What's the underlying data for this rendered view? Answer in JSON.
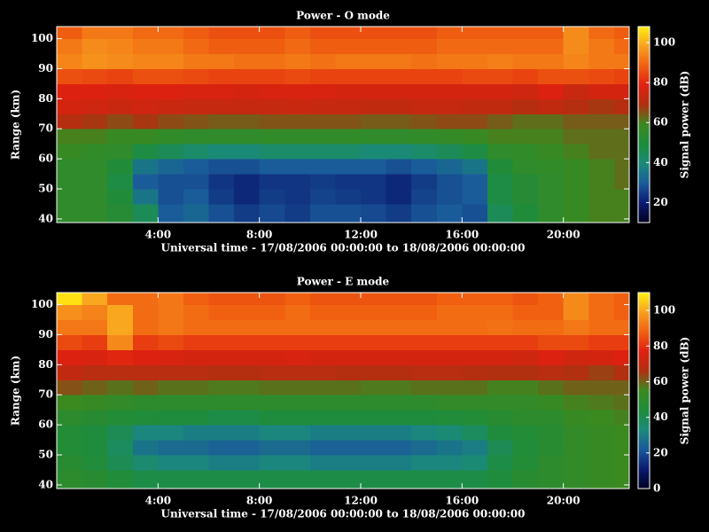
{
  "chart_data": [
    {
      "type": "heatmap",
      "title": "Power - O mode",
      "xlabel": "Universal time - 17/08/2006 00:00:00 to 18/08/2006 00:00:00",
      "ylabel": "Range (km)",
      "colorbar_label": "Signal power (dB)",
      "xbins": [
        0,
        1,
        2,
        3,
        4,
        5,
        6,
        7,
        8,
        9,
        10,
        11,
        12,
        13,
        14,
        15,
        16,
        17,
        18,
        19,
        20,
        21,
        22,
        22.6
      ],
      "ybins": [
        38.8,
        45,
        50,
        55,
        60,
        65,
        70,
        75,
        80,
        85,
        90,
        95,
        100,
        104
      ],
      "z": [
        [
          55,
          55,
          52,
          45,
          30,
          32,
          28,
          25,
          27,
          25,
          28,
          28,
          27,
          25,
          28,
          30,
          28,
          45,
          50,
          55,
          58,
          60,
          60
        ],
        [
          55,
          55,
          50,
          35,
          28,
          30,
          25,
          22,
          25,
          24,
          26,
          25,
          24,
          22,
          26,
          28,
          30,
          48,
          52,
          55,
          58,
          60,
          60
        ],
        [
          55,
          55,
          48,
          30,
          28,
          28,
          24,
          22,
          24,
          24,
          25,
          24,
          24,
          22,
          25,
          28,
          30,
          48,
          52,
          55,
          58,
          60,
          62
        ],
        [
          55,
          55,
          50,
          35,
          32,
          30,
          28,
          28,
          30,
          30,
          30,
          30,
          30,
          28,
          30,
          32,
          35,
          50,
          55,
          56,
          58,
          60,
          62
        ],
        [
          58,
          56,
          55,
          48,
          45,
          42,
          40,
          40,
          42,
          42,
          42,
          42,
          40,
          40,
          42,
          45,
          48,
          55,
          56,
          58,
          60,
          62,
          62
        ],
        [
          60,
          60,
          58,
          58,
          56,
          55,
          55,
          55,
          56,
          56,
          56,
          56,
          55,
          55,
          56,
          57,
          58,
          60,
          60,
          60,
          62,
          62,
          62
        ],
        [
          70,
          68,
          66,
          68,
          66,
          65,
          64,
          64,
          65,
          65,
          65,
          65,
          64,
          64,
          65,
          66,
          66,
          64,
          62,
          62,
          64,
          64,
          64
        ],
        [
          76,
          75,
          74,
          75,
          74,
          73,
          73,
          73,
          73,
          74,
          73,
          73,
          72,
          72,
          73,
          73,
          72,
          72,
          70,
          72,
          70,
          68,
          70
        ],
        [
          78,
          78,
          77,
          78,
          78,
          77,
          77,
          76,
          77,
          77,
          77,
          76,
          76,
          76,
          76,
          76,
          76,
          76,
          75,
          78,
          74,
          76,
          76
        ],
        [
          86,
          85,
          84,
          86,
          86,
          85,
          84,
          84,
          84,
          85,
          84,
          84,
          84,
          84,
          84,
          84,
          85,
          85,
          84,
          86,
          86,
          85,
          84
        ],
        [
          94,
          96,
          95,
          94,
          94,
          92,
          92,
          91,
          91,
          92,
          91,
          92,
          92,
          92,
          91,
          92,
          92,
          93,
          92,
          92,
          94,
          92,
          92
        ],
        [
          92,
          95,
          94,
          92,
          92,
          90,
          88,
          88,
          88,
          90,
          88,
          88,
          88,
          88,
          88,
          90,
          90,
          90,
          90,
          90,
          95,
          92,
          90
        ],
        [
          88,
          92,
          92,
          90,
          90,
          88,
          86,
          86,
          86,
          88,
          86,
          86,
          86,
          86,
          86,
          88,
          88,
          88,
          88,
          88,
          95,
          90,
          88
        ]
      ],
      "xlim": [
        0,
        22.6
      ],
      "ylim": [
        38.8,
        104
      ],
      "xticks": [
        {
          "value": 4,
          "label": "4:00"
        },
        {
          "value": 8,
          "label": "8:00"
        },
        {
          "value": 12,
          "label": "12:00"
        },
        {
          "value": 16,
          "label": "16:00"
        },
        {
          "value": 20,
          "label": "20:00"
        }
      ],
      "yticks": [
        40,
        50,
        60,
        70,
        80,
        90,
        100
      ],
      "zlim": [
        10,
        108
      ],
      "zticks": [
        20,
        40,
        60,
        80,
        100
      ],
      "colors": [
        "#000020",
        "#0a1a70",
        "#1a5a9a",
        "#1a8a7a",
        "#1e8c3c",
        "#3a8a20",
        "#b03010",
        "#e02010",
        "#f06010",
        "#f8a020",
        "#ffee10"
      ]
    },
    {
      "type": "heatmap",
      "title": "Power - E mode",
      "xlabel": "Universal time - 17/08/2006 00:00:00 to 18/08/2006 00:00:00",
      "ylabel": "Range (km)",
      "colorbar_label": "Signal power (dB)",
      "xbins": [
        0,
        1,
        2,
        3,
        4,
        5,
        6,
        7,
        8,
        9,
        10,
        11,
        12,
        13,
        14,
        15,
        16,
        17,
        18,
        19,
        20,
        21,
        22,
        22.6
      ],
      "ybins": [
        38.8,
        45,
        50,
        55,
        60,
        65,
        70,
        75,
        80,
        85,
        90,
        95,
        100,
        104
      ],
      "z": [
        [
          50,
          48,
          45,
          42,
          42,
          42,
          42,
          42,
          42,
          42,
          42,
          42,
          42,
          42,
          42,
          42,
          42,
          44,
          48,
          50,
          52,
          54,
          55
        ],
        [
          48,
          45,
          40,
          35,
          32,
          32,
          30,
          30,
          32,
          32,
          30,
          30,
          30,
          30,
          32,
          32,
          34,
          42,
          46,
          50,
          52,
          54,
          55
        ],
        [
          46,
          44,
          38,
          28,
          26,
          26,
          24,
          24,
          26,
          26,
          24,
          24,
          24,
          24,
          26,
          28,
          30,
          40,
          45,
          48,
          52,
          54,
          55
        ],
        [
          46,
          44,
          40,
          32,
          32,
          30,
          30,
          30,
          32,
          32,
          30,
          30,
          30,
          30,
          32,
          34,
          38,
          44,
          46,
          48,
          52,
          54,
          55
        ],
        [
          50,
          48,
          46,
          45,
          44,
          44,
          42,
          42,
          44,
          44,
          44,
          44,
          44,
          44,
          44,
          45,
          46,
          48,
          50,
          50,
          54,
          55,
          56
        ],
        [
          55,
          54,
          52,
          50,
          50,
          50,
          50,
          50,
          50,
          50,
          50,
          50,
          50,
          50,
          50,
          52,
          52,
          52,
          52,
          54,
          56,
          57,
          58
        ],
        [
          62,
          60,
          58,
          60,
          58,
          58,
          57,
          57,
          58,
          58,
          58,
          58,
          57,
          57,
          58,
          58,
          58,
          56,
          56,
          58,
          60,
          60,
          60
        ],
        [
          70,
          68,
          68,
          68,
          68,
          68,
          67,
          67,
          68,
          68,
          68,
          67,
          67,
          67,
          68,
          68,
          67,
          66,
          66,
          68,
          66,
          64,
          66
        ],
        [
          76,
          75,
          78,
          76,
          75,
          74,
          74,
          74,
          74,
          75,
          74,
          74,
          74,
          74,
          74,
          74,
          74,
          74,
          73,
          76,
          73,
          74,
          76
        ],
        [
          84,
          82,
          95,
          82,
          84,
          82,
          82,
          82,
          82,
          82,
          82,
          82,
          82,
          82,
          82,
          82,
          82,
          82,
          82,
          84,
          84,
          82,
          82
        ],
        [
          92,
          92,
          100,
          90,
          92,
          90,
          90,
          90,
          90,
          90,
          90,
          90,
          90,
          90,
          90,
          90,
          90,
          91,
          90,
          90,
          92,
          90,
          90
        ],
        [
          96,
          94,
          100,
          90,
          92,
          90,
          88,
          88,
          88,
          90,
          88,
          88,
          88,
          88,
          88,
          90,
          90,
          90,
          88,
          88,
          95,
          90,
          88
        ],
        [
          108,
          100,
          90,
          90,
          92,
          88,
          86,
          86,
          86,
          88,
          86,
          86,
          86,
          86,
          86,
          88,
          88,
          88,
          86,
          88,
          95,
          90,
          88
        ]
      ],
      "xlim": [
        0,
        22.6
      ],
      "ylim": [
        38.8,
        104
      ],
      "xticks": [
        {
          "value": 4,
          "label": "4:00"
        },
        {
          "value": 8,
          "label": "8:00"
        },
        {
          "value": 12,
          "label": "12:00"
        },
        {
          "value": 16,
          "label": "16:00"
        },
        {
          "value": 20,
          "label": "20:00"
        }
      ],
      "yticks": [
        40,
        50,
        60,
        70,
        80,
        90,
        100
      ],
      "zlim": [
        0,
        110
      ],
      "zticks": [
        0,
        20,
        40,
        60,
        80,
        100
      ],
      "colors": [
        "#000020",
        "#0a1a70",
        "#1a5a9a",
        "#1a8a7a",
        "#1e8c3c",
        "#3a8a20",
        "#b03010",
        "#e02010",
        "#f06010",
        "#f8a020",
        "#ffee10"
      ]
    }
  ]
}
